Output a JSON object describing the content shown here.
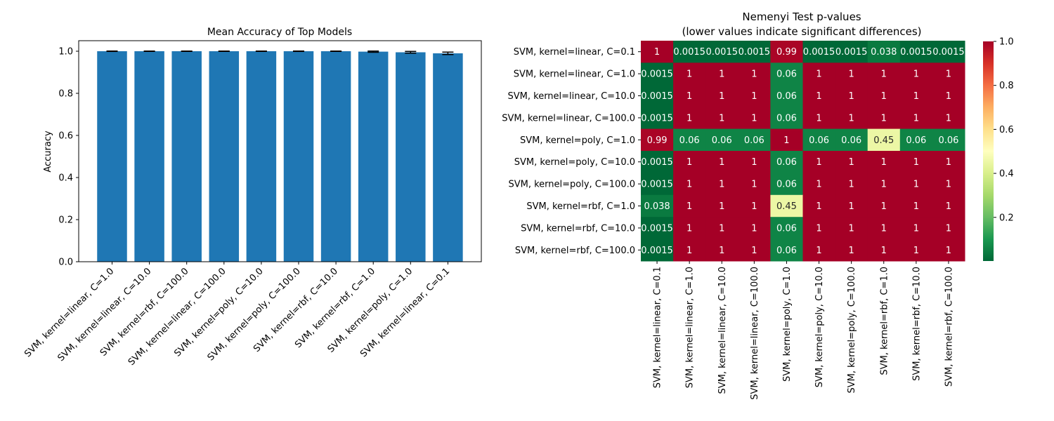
{
  "chart_data": [
    {
      "type": "bar",
      "title": "Mean Accuracy of Top Models",
      "xlabel": "",
      "ylabel": "Accuracy",
      "ylim": [
        0,
        1.05
      ],
      "yticks": [
        "0.0",
        "0.2",
        "0.4",
        "0.6",
        "0.8",
        "1.0"
      ],
      "categories": [
        "SVM, kernel=linear, C=1.0",
        "SVM, kernel=linear, C=10.0",
        "SVM, kernel=rbf, C=100.0",
        "SVM, kernel=linear, C=100.0",
        "SVM, kernel=poly, C=10.0",
        "SVM, kernel=poly, C=100.0",
        "SVM, kernel=rbf, C=10.0",
        "SVM, kernel=rbf, C=1.0",
        "SVM, kernel=poly, C=1.0",
        "SVM, kernel=linear, C=0.1"
      ],
      "values": [
        1.0,
        1.0,
        1.0,
        1.0,
        1.0,
        1.0,
        1.0,
        0.998,
        0.995,
        0.99
      ],
      "errors": [
        0.001,
        0.001,
        0.001,
        0.001,
        0.001,
        0.001,
        0.001,
        0.003,
        0.004,
        0.006
      ],
      "bar_color": "#1f77b4",
      "grid": false
    },
    {
      "type": "heatmap",
      "title": "Nemenyi Test p-values",
      "subtitle": "(lower values indicate significant differences)",
      "row_labels": [
        "SVM, kernel=linear, C=0.1",
        "SVM, kernel=linear, C=1.0",
        "SVM, kernel=linear, C=10.0",
        "SVM, kernel=linear, C=100.0",
        "SVM, kernel=poly, C=1.0",
        "SVM, kernel=poly, C=10.0",
        "SVM, kernel=poly, C=100.0",
        "SVM, kernel=rbf, C=1.0",
        "SVM, kernel=rbf, C=10.0",
        "SVM, kernel=rbf, C=100.0"
      ],
      "col_labels": [
        "SVM, kernel=linear, C=0.1",
        "SVM, kernel=linear, C=1.0",
        "SVM, kernel=linear, C=10.0",
        "SVM, kernel=linear, C=100.0",
        "SVM, kernel=poly, C=1.0",
        "SVM, kernel=poly, C=10.0",
        "SVM, kernel=poly, C=100.0",
        "SVM, kernel=rbf, C=1.0",
        "SVM, kernel=rbf, C=10.0",
        "SVM, kernel=rbf, C=100.0"
      ],
      "values": [
        [
          1,
          0.0015,
          0.0015,
          0.0015,
          0.99,
          0.0015,
          0.0015,
          0.038,
          0.0015,
          0.0015
        ],
        [
          0.0015,
          1,
          1,
          1,
          0.06,
          1,
          1,
          1,
          1,
          1
        ],
        [
          0.0015,
          1,
          1,
          1,
          0.06,
          1,
          1,
          1,
          1,
          1
        ],
        [
          0.0015,
          1,
          1,
          1,
          0.06,
          1,
          1,
          1,
          1,
          1
        ],
        [
          0.99,
          0.06,
          0.06,
          0.06,
          1,
          0.06,
          0.06,
          0.45,
          0.06,
          0.06
        ],
        [
          0.0015,
          1,
          1,
          1,
          0.06,
          1,
          1,
          1,
          1,
          1
        ],
        [
          0.0015,
          1,
          1,
          1,
          0.06,
          1,
          1,
          1,
          1,
          1
        ],
        [
          0.038,
          1,
          1,
          1,
          0.45,
          1,
          1,
          1,
          1,
          1
        ],
        [
          0.0015,
          1,
          1,
          1,
          0.06,
          1,
          1,
          1,
          1,
          1
        ],
        [
          0.0015,
          1,
          1,
          1,
          0.06,
          1,
          1,
          1,
          1,
          1
        ]
      ],
      "colormap": "RdYlGn_r",
      "colorbar_range": [
        0.0015,
        1.0
      ],
      "colorbar_ticks": [
        "0.2",
        "0.4",
        "0.6",
        "0.8",
        "1.0"
      ],
      "colorbar_tick_values": [
        0.2,
        0.4,
        0.6,
        0.8,
        1.0
      ],
      "colormap_stops": [
        "#006837",
        "#1a9850",
        "#66bd63",
        "#a6d96a",
        "#d9ef8b",
        "#ffffbf",
        "#fee08b",
        "#fdae61",
        "#f46d43",
        "#d73027",
        "#a50026"
      ]
    }
  ]
}
